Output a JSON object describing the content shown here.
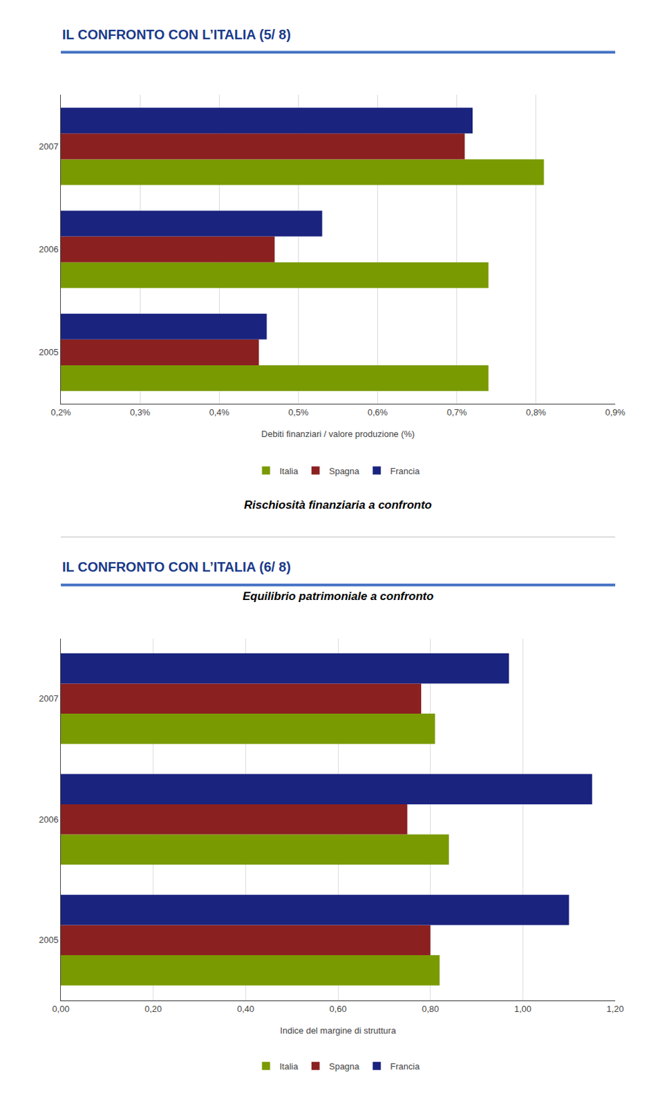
{
  "chart_data": [
    {
      "type": "bar",
      "orientation": "horizontal",
      "title": "IL CONFRONTO CON L’ITALIA (5/ 8)",
      "subtitle": "Rischiosità finanziaria a confronto",
      "x_label": "Debiti finanziari / valore produzione (%)",
      "categories": [
        "2005",
        "2006",
        "2007"
      ],
      "series": [
        {
          "name": "Italia",
          "color": "#7a9a01",
          "values": [
            0.74,
            0.74,
            0.81
          ]
        },
        {
          "name": "Spagna",
          "color": "#8b2020",
          "values": [
            0.45,
            0.47,
            0.71
          ]
        },
        {
          "name": "Francia",
          "color": "#1a237e",
          "values": [
            0.46,
            0.53,
            0.72
          ]
        }
      ],
      "xlim": [
        0.2,
        0.9
      ],
      "xticks": [
        {
          "value": 0.2,
          "label": "0,2%"
        },
        {
          "value": 0.3,
          "label": "0,3%"
        },
        {
          "value": 0.4,
          "label": "0,4%"
        },
        {
          "value": 0.5,
          "label": "0,5%"
        },
        {
          "value": 0.6,
          "label": "0,6%"
        },
        {
          "value": 0.7,
          "label": "0,7%"
        },
        {
          "value": 0.8,
          "label": "0,8%"
        },
        {
          "value": 0.9,
          "label": "0,9%"
        }
      ],
      "grid": true,
      "legend": "bottom"
    },
    {
      "type": "bar",
      "orientation": "horizontal",
      "title": "IL CONFRONTO CON L’ITALIA (6/ 8)",
      "subtitle": "Equilibrio patrimoniale a confronto",
      "x_label": "Indice del margine di struttura",
      "categories": [
        "2005",
        "2006",
        "2007"
      ],
      "series": [
        {
          "name": "Italia",
          "color": "#7a9a01",
          "values": [
            0.82,
            0.84,
            0.81
          ]
        },
        {
          "name": "Spagna",
          "color": "#8b2020",
          "values": [
            0.8,
            0.75,
            0.78
          ]
        },
        {
          "name": "Francia",
          "color": "#1a237e",
          "values": [
            1.1,
            1.15,
            0.97
          ]
        }
      ],
      "xlim": [
        0.0,
        1.2
      ],
      "xticks": [
        {
          "value": 0.0,
          "label": "0,00"
        },
        {
          "value": 0.2,
          "label": "0,20"
        },
        {
          "value": 0.4,
          "label": "0,40"
        },
        {
          "value": 0.6,
          "label": "0,60"
        },
        {
          "value": 0.8,
          "label": "0,80"
        },
        {
          "value": 1.0,
          "label": "1,00"
        },
        {
          "value": 1.2,
          "label": "1,20"
        }
      ],
      "grid": true,
      "legend": "bottom"
    }
  ]
}
